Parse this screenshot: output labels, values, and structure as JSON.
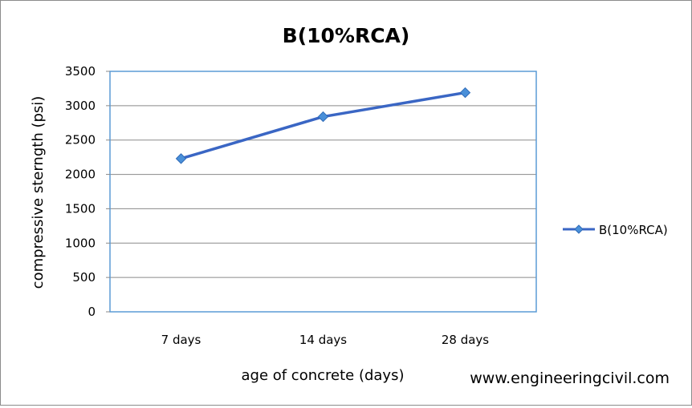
{
  "chart_data": {
    "type": "line",
    "title": "B(10%RCA)",
    "xlabel": "age of concrete (days)",
    "ylabel": "compressive sterngth (psi)",
    "categories": [
      "7 days",
      "14 days",
      "28 days"
    ],
    "series": [
      {
        "name": "B(10%RCA)",
        "values": [
          2230,
          2840,
          3190
        ],
        "color": "#3a66c4"
      }
    ],
    "ylim": [
      0,
      3500
    ],
    "yticks": [
      0,
      500,
      1000,
      1500,
      2000,
      2500,
      3000,
      3500
    ],
    "grid": true,
    "legend": "right",
    "plot_border_color": "#5b9bd5"
  },
  "watermark": "www.engineeringcivil.com"
}
